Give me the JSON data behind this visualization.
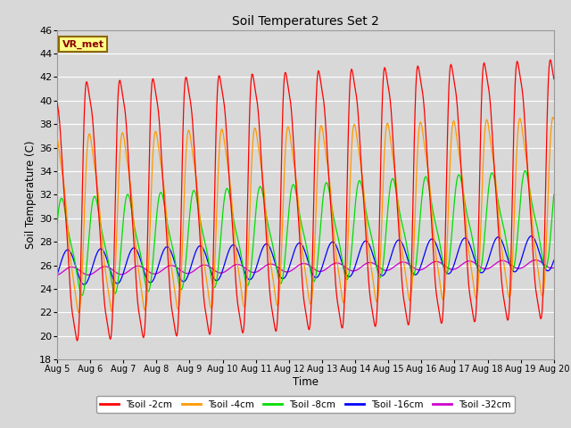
{
  "title": "Soil Temperatures Set 2",
  "xlabel": "Time",
  "ylabel": "Soil Temperature (C)",
  "ylim": [
    18,
    46
  ],
  "yticks": [
    18,
    20,
    22,
    24,
    26,
    28,
    30,
    32,
    34,
    36,
    38,
    40,
    42,
    44,
    46
  ],
  "colors": {
    "Tsoil -2cm": "#ff0000",
    "Tsoil -4cm": "#ff9900",
    "Tsoil -8cm": "#00dd00",
    "Tsoil -16cm": "#0000ff",
    "Tsoil -32cm": "#cc00cc"
  },
  "legend_labels": [
    "Tsoil -2cm",
    "Tsoil -4cm",
    "Tsoil -8cm",
    "Tsoil -16cm",
    "Tsoil -32cm"
  ],
  "vr_met_label": "VR_met",
  "background_color": "#d8d8d8",
  "axes_background": "#d8d8d8",
  "grid_color": "#ffffff",
  "xtick_labels": [
    "Aug 5",
    "Aug 6",
    "Aug 7",
    "Aug 8",
    "Aug 9",
    "Aug 10",
    "Aug 11",
    "Aug 12",
    "Aug 13",
    "Aug 14",
    "Aug 15",
    "Aug 16",
    "Aug 17",
    "Aug 18",
    "Aug 19",
    "Aug 20"
  ]
}
